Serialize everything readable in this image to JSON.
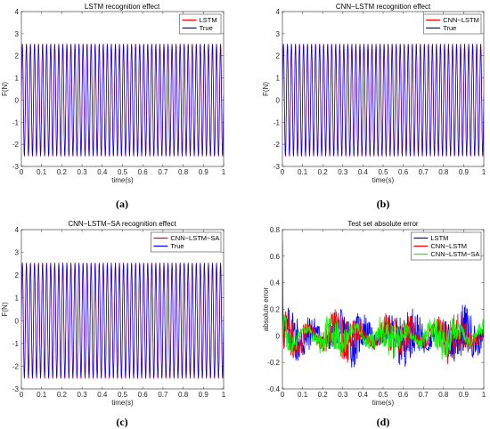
{
  "chart_data": [
    {
      "type": "line",
      "title": "LSTM recognition effect",
      "xlabel": "time(s)",
      "ylabel": "F(N)",
      "xlim": [
        0,
        1
      ],
      "ylim": [
        -3,
        4
      ],
      "xticks": [
        "0",
        "0.1",
        "0.2",
        "0.3",
        "0.4",
        "0.5",
        "0.6",
        "0.7",
        "0.8",
        "0.9",
        "1"
      ],
      "yticks": [
        "-3",
        "-2",
        "-1",
        "0",
        "1",
        "2",
        "3",
        "4"
      ],
      "legend_position": "top-right",
      "series": [
        {
          "name": "LSTM",
          "color": "#ff0000",
          "kind": "sine",
          "amplitude": 2.55,
          "frequency_hz": 50
        },
        {
          "name": "True",
          "color": "#0000ff",
          "kind": "sine",
          "amplitude": 2.5,
          "frequency_hz": 50
        }
      ],
      "caption": "(a)"
    },
    {
      "type": "line",
      "title": "CNN−LSTM recognition effect",
      "xlabel": "time(s)",
      "ylabel": "F(N)",
      "xlim": [
        0,
        1
      ],
      "ylim": [
        -3,
        4
      ],
      "xticks": [
        "0",
        "0.1",
        "0.2",
        "0.3",
        "0.4",
        "0.5",
        "0.6",
        "0.7",
        "0.8",
        "0.9",
        "1"
      ],
      "yticks": [
        "-3",
        "-2",
        "-1",
        "0",
        "1",
        "2",
        "3",
        "4"
      ],
      "legend_position": "top-right",
      "series": [
        {
          "name": "CNN−LSTM",
          "color": "#ff0000",
          "kind": "sine",
          "amplitude": 2.55,
          "frequency_hz": 50
        },
        {
          "name": "True",
          "color": "#0000ff",
          "kind": "sine",
          "amplitude": 2.5,
          "frequency_hz": 50
        }
      ],
      "caption": "(b)"
    },
    {
      "type": "line",
      "title": "CNN−LSTM−SA recognition effect",
      "xlabel": "time(s)",
      "ylabel": "F(N)",
      "xlim": [
        0,
        1
      ],
      "ylim": [
        -3,
        4
      ],
      "xticks": [
        "0",
        "0.1",
        "0.2",
        "0.3",
        "0.4",
        "0.5",
        "0.6",
        "0.7",
        "0.8",
        "0.9",
        "1"
      ],
      "yticks": [
        "-3",
        "-2",
        "-1",
        "0",
        "1",
        "2",
        "3",
        "4"
      ],
      "legend_position": "top-right",
      "series": [
        {
          "name": "CNN−LSTM−SA",
          "color": "#ff0000",
          "kind": "sine",
          "amplitude": 2.55,
          "frequency_hz": 50
        },
        {
          "name": "True",
          "color": "#0000ff",
          "kind": "sine",
          "amplitude": 2.5,
          "frequency_hz": 50
        }
      ],
      "caption": "(c)"
    },
    {
      "type": "line",
      "title": "Test set absolute error",
      "xlabel": "time(s)",
      "ylabel": "absolute error",
      "xlim": [
        0,
        1
      ],
      "ylim": [
        -0.4,
        0.8
      ],
      "xticks": [
        "0",
        "0.1",
        "0.2",
        "0.3",
        "0.4",
        "0.5",
        "0.6",
        "0.7",
        "0.8",
        "0.9",
        "1"
      ],
      "yticks": [
        "-0.4",
        "-0.2",
        "0",
        "0.2",
        "0.4",
        "0.6",
        "0.8"
      ],
      "legend_position": "top-right",
      "series": [
        {
          "name": "LSTM",
          "color": "#0000ff",
          "kind": "noise",
          "amplitude": 0.2,
          "start_value": 0.72
        },
        {
          "name": "CNN−LSTM",
          "color": "#ff0000",
          "kind": "noise",
          "amplitude": 0.17,
          "start_value": 0.25
        },
        {
          "name": "CNN−LSTM−SA",
          "color": "#00ff00",
          "kind": "noise",
          "amplitude": 0.14,
          "start_value": 0.1
        }
      ],
      "caption": "(d)"
    }
  ]
}
